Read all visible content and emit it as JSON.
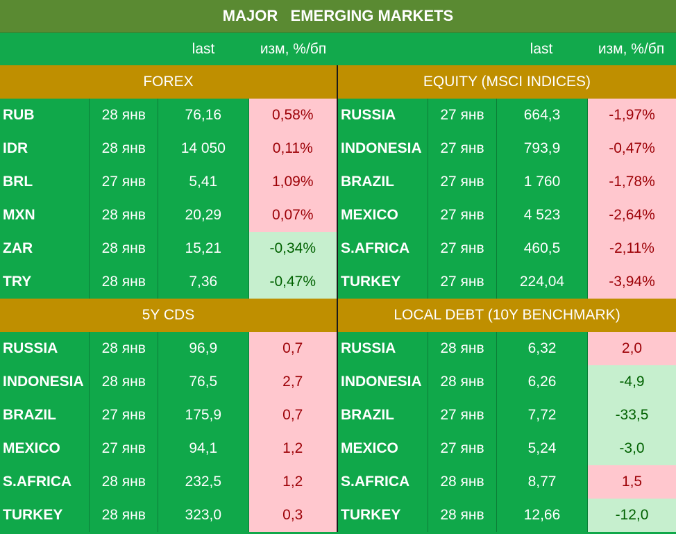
{
  "title": "MAJOR   EMERGING MARKETS",
  "headers": {
    "last": "last",
    "change": "изм, %/бп"
  },
  "top": {
    "left": {
      "section": "FOREX",
      "rows": [
        {
          "name": "RUB",
          "date": "28 янв",
          "last": "76,16",
          "change": "0,58%",
          "tone": "neg"
        },
        {
          "name": "IDR",
          "date": "28 янв",
          "last": "14 050",
          "change": "0,11%",
          "tone": "neg"
        },
        {
          "name": "BRL",
          "date": "27 янв",
          "last": "5,41",
          "change": "1,09%",
          "tone": "neg"
        },
        {
          "name": "MXN",
          "date": "28 янв",
          "last": "20,29",
          "change": "0,07%",
          "tone": "neg"
        },
        {
          "name": "ZAR",
          "date": "28 янв",
          "last": "15,21",
          "change": "-0,34%",
          "tone": "pos"
        },
        {
          "name": "TRY",
          "date": "28 янв",
          "last": "7,36",
          "change": "-0,47%",
          "tone": "pos"
        }
      ]
    },
    "right": {
      "section": "EQUITY (MSCI INDICES)",
      "rows": [
        {
          "name": "RUSSIA",
          "date": "27 янв",
          "last": "664,3",
          "change": "-1,97%",
          "tone": "neg"
        },
        {
          "name": "INDONESIA",
          "date": "27 янв",
          "last": "793,9",
          "change": "-0,47%",
          "tone": "neg"
        },
        {
          "name": "BRAZIL",
          "date": "27 янв",
          "last": "1 760",
          "change": "-1,78%",
          "tone": "neg"
        },
        {
          "name": "MEXICO",
          "date": "27 янв",
          "last": "4 523",
          "change": "-2,64%",
          "tone": "neg"
        },
        {
          "name": "S.AFRICA",
          "date": "27 янв",
          "last": "460,5",
          "change": "-2,11%",
          "tone": "neg"
        },
        {
          "name": "TURKEY",
          "date": "27 янв",
          "last": "224,04",
          "change": "-3,94%",
          "tone": "neg"
        }
      ]
    }
  },
  "bottom": {
    "left": {
      "section": "5Y CDS",
      "rows": [
        {
          "name": "RUSSIA",
          "date": "28 янв",
          "last": "96,9",
          "change": "0,7",
          "tone": "neg"
        },
        {
          "name": "INDONESIA",
          "date": "28 янв",
          "last": "76,5",
          "change": "2,7",
          "tone": "neg"
        },
        {
          "name": "BRAZIL",
          "date": "27 янв",
          "last": "175,9",
          "change": "0,7",
          "tone": "neg"
        },
        {
          "name": "MEXICO",
          "date": "27 янв",
          "last": "94,1",
          "change": "1,2",
          "tone": "neg"
        },
        {
          "name": "S.AFRICA",
          "date": "28 янв",
          "last": "232,5",
          "change": "1,2",
          "tone": "neg"
        },
        {
          "name": "TURKEY",
          "date": "28 янв",
          "last": "323,0",
          "change": "0,3",
          "tone": "neg"
        }
      ]
    },
    "right": {
      "section": "LOCAL DEBT (10Y BENCHMARK)",
      "rows": [
        {
          "name": "RUSSIA",
          "date": "28 янв",
          "last": "6,32",
          "change": "2,0",
          "tone": "neg"
        },
        {
          "name": "INDONESIA",
          "date": "28 янв",
          "last": "6,26",
          "change": "-4,9",
          "tone": "pos"
        },
        {
          "name": "BRAZIL",
          "date": "27 янв",
          "last": "7,72",
          "change": "-33,5",
          "tone": "pos"
        },
        {
          "name": "MEXICO",
          "date": "27 янв",
          "last": "5,24",
          "change": "-3,0",
          "tone": "pos"
        },
        {
          "name": "S.AFRICA",
          "date": "28 янв",
          "last": "8,77",
          "change": "1,5",
          "tone": "neg"
        },
        {
          "name": "TURKEY",
          "date": "28 янв",
          "last": "12,66",
          "change": "-12,0",
          "tone": "pos"
        }
      ]
    }
  },
  "colors": {
    "green": "#10a84a",
    "gold": "#bf8f00",
    "titlebar": "#5a8a32",
    "neg_bg": "#ffc7ce",
    "pos_bg": "#c6efce"
  }
}
